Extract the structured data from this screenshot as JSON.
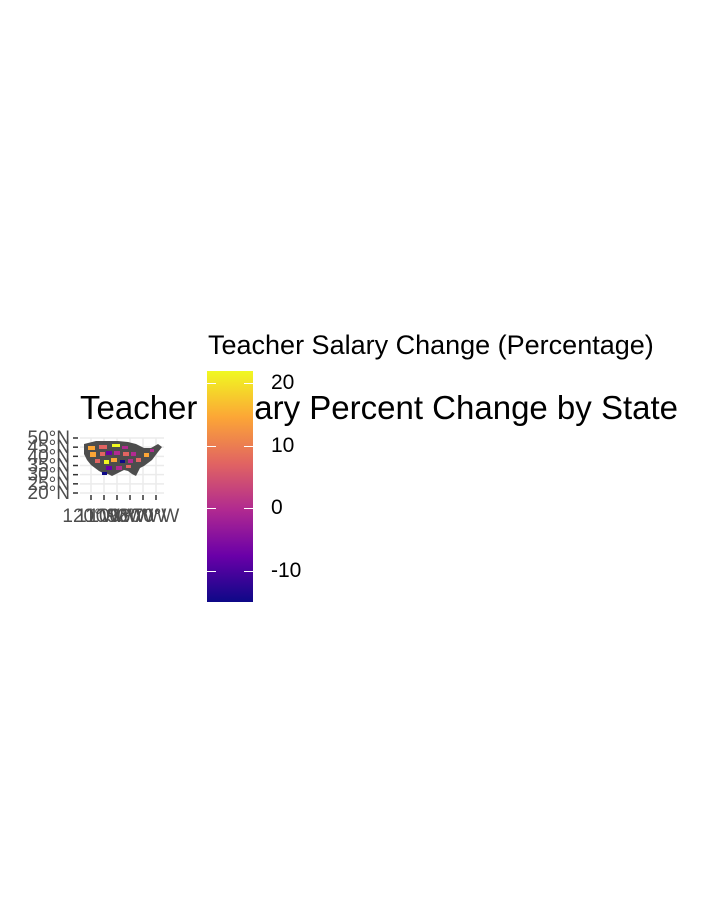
{
  "chart_data": {
    "type": "map",
    "title": "Teacher Salary Percent Change by State",
    "legend": {
      "title": "Teacher Salary Change (Percentage)",
      "placement": "right",
      "min": -15,
      "max": 22,
      "ticks": [
        20,
        10,
        0,
        -10
      ],
      "tick_labels": [
        "20",
        "10",
        "0",
        "-10"
      ],
      "palette": [
        "#0d0887",
        "#6a00a8",
        "#b12a90",
        "#e16462",
        "#fca636",
        "#f0f921"
      ]
    },
    "y_axis": {
      "tick_labels": [
        "50°N",
        "45°N",
        "40°N",
        "35°N",
        "30°N",
        "25°N",
        "20°N"
      ]
    },
    "x_axis": {
      "tick_labels": [
        "120°W",
        "110°W",
        "100°W",
        "90°W",
        "80°W",
        "70°W"
      ]
    },
    "colors": {
      "land": "#4d4d4d",
      "panel_grid": "#ebebeb",
      "axis_text": "#4d4d4d"
    }
  }
}
